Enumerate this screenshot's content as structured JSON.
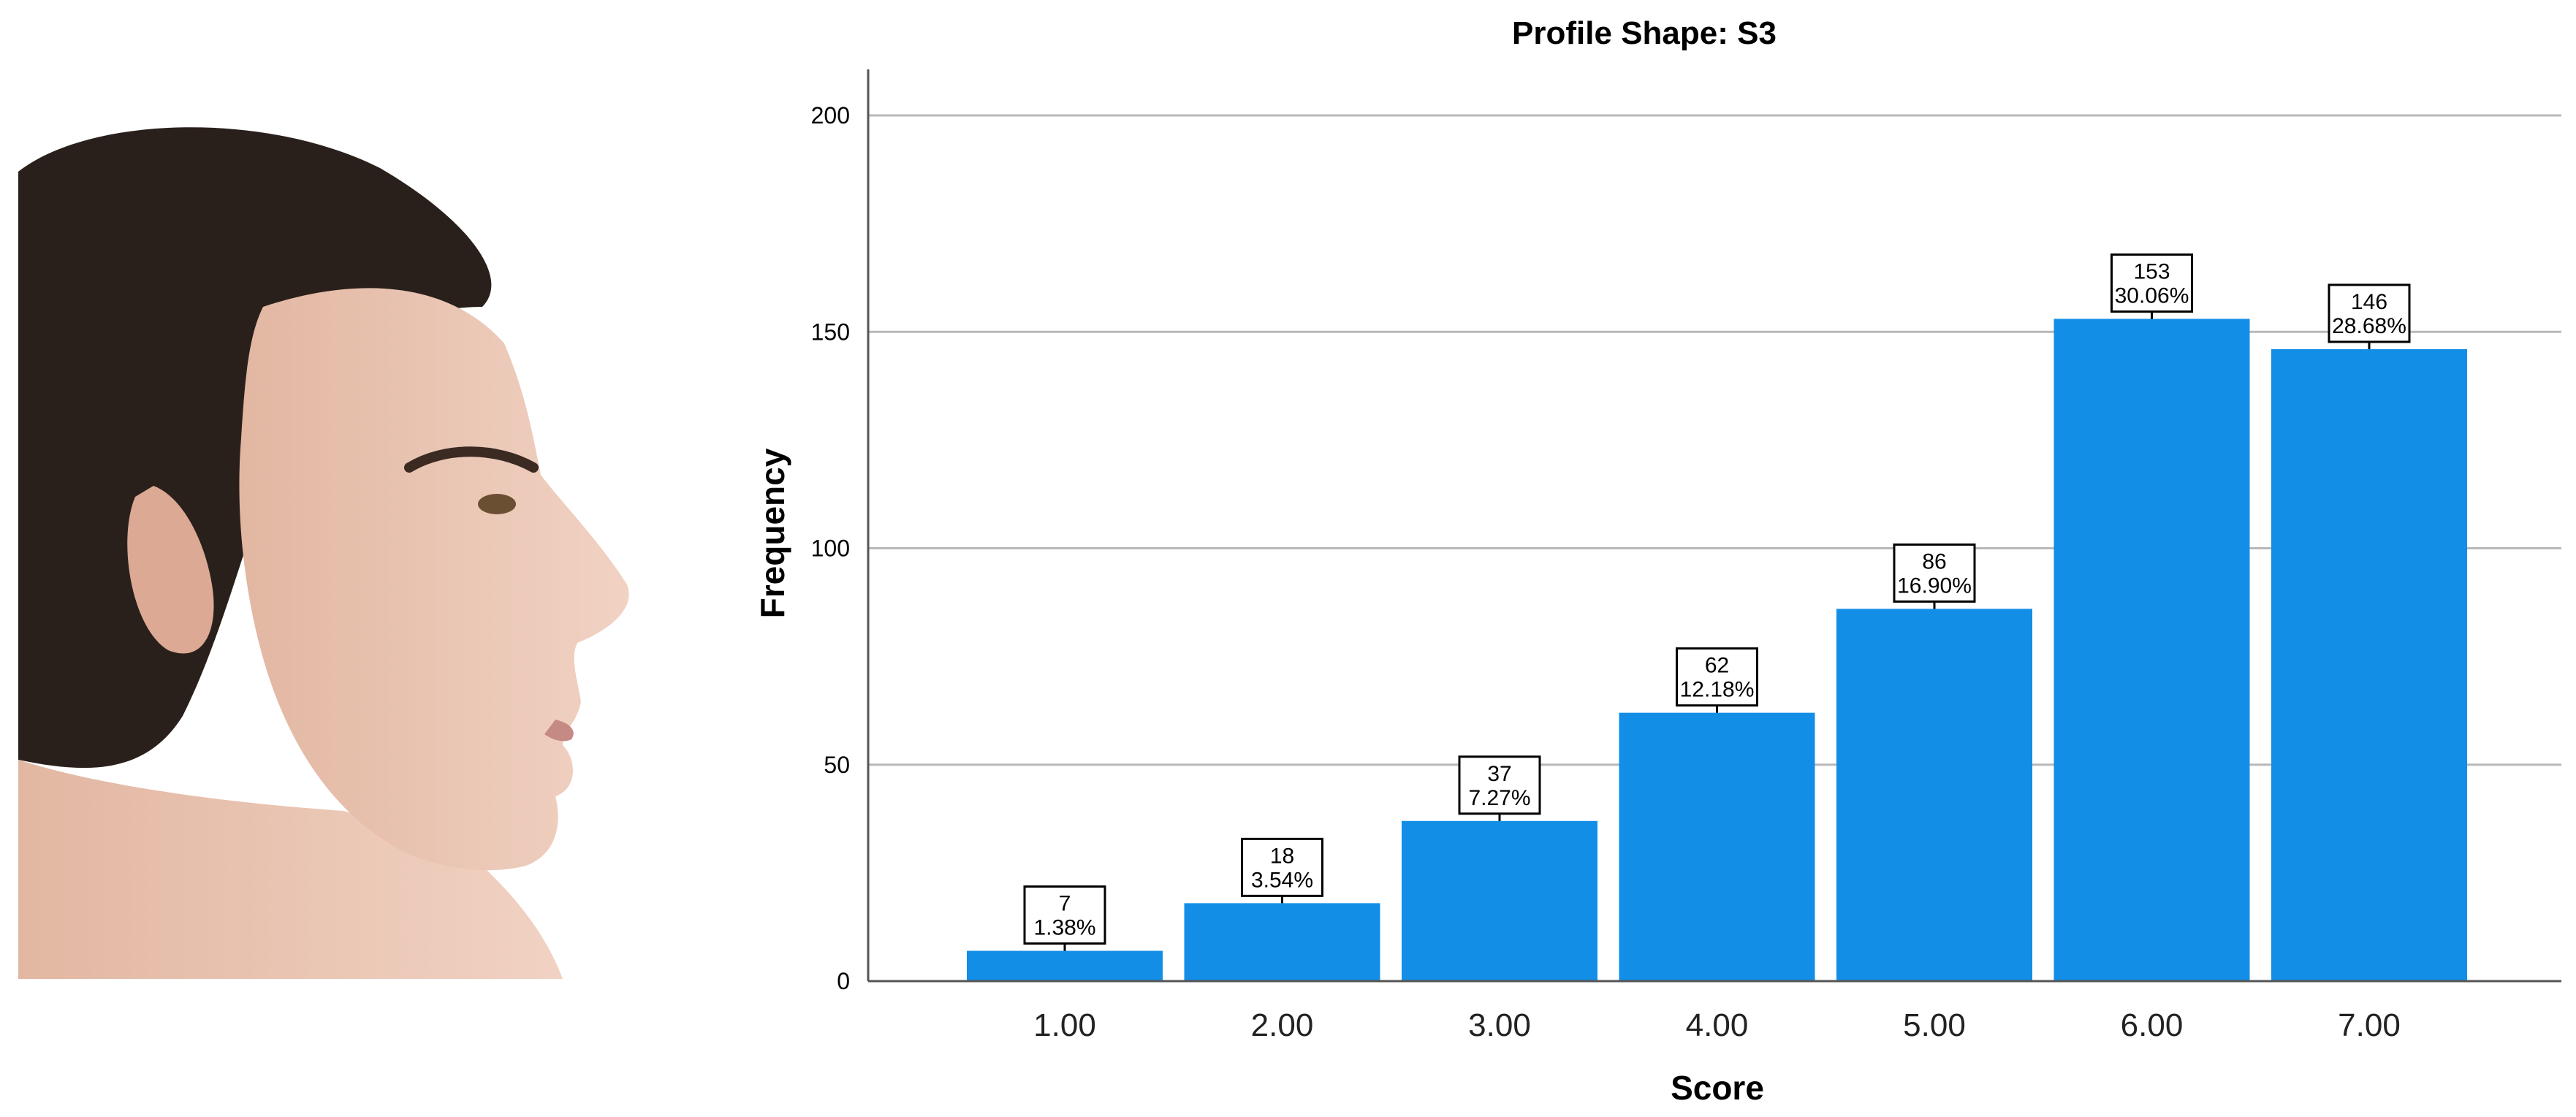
{
  "chart_data": {
    "type": "bar",
    "title": "Profile Shape: S3",
    "xlabel": "Score",
    "ylabel": "Frequency",
    "categories": [
      "1.00",
      "2.00",
      "3.00",
      "4.00",
      "5.00",
      "6.00",
      "7.00"
    ],
    "values": [
      7,
      18,
      37,
      62,
      86,
      153,
      146
    ],
    "percent_labels": [
      "1.38%",
      "3.54%",
      "7.27%",
      "12.18%",
      "16.90%",
      "30.06%",
      "28.68%"
    ],
    "ylim": [
      0,
      200
    ],
    "yticks": [
      "0",
      "50",
      "100",
      "150",
      "200"
    ],
    "grid": true,
    "legend": "none",
    "bar_color": "#138ee6"
  }
}
